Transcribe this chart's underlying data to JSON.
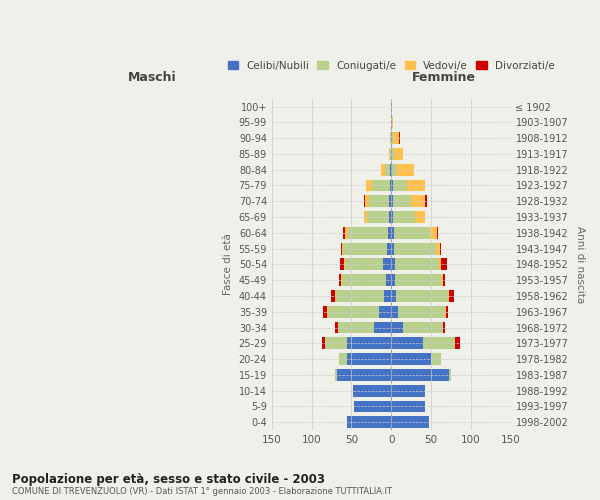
{
  "age_groups": [
    "0-4",
    "5-9",
    "10-14",
    "15-19",
    "20-24",
    "25-29",
    "30-34",
    "35-39",
    "40-44",
    "45-49",
    "50-54",
    "55-59",
    "60-64",
    "65-69",
    "70-74",
    "75-79",
    "80-84",
    "85-89",
    "90-94",
    "95-99",
    "100+"
  ],
  "birth_years": [
    "1998-2002",
    "1993-1997",
    "1988-1992",
    "1983-1987",
    "1978-1982",
    "1973-1977",
    "1968-1972",
    "1963-1967",
    "1958-1962",
    "1953-1957",
    "1948-1952",
    "1943-1947",
    "1938-1942",
    "1933-1937",
    "1928-1932",
    "1923-1927",
    "1918-1922",
    "1913-1917",
    "1908-1912",
    "1903-1907",
    "≤ 1902"
  ],
  "maschi": {
    "celibi": [
      56,
      47,
      48,
      68,
      55,
      55,
      22,
      15,
      9,
      7,
      10,
      5,
      4,
      3,
      3,
      2,
      1,
      0,
      0,
      0,
      0
    ],
    "coniugati": [
      0,
      0,
      0,
      3,
      10,
      28,
      45,
      65,
      60,
      55,
      48,
      55,
      50,
      28,
      25,
      22,
      7,
      2,
      1,
      0,
      0
    ],
    "vedovi": [
      0,
      0,
      0,
      0,
      0,
      0,
      0,
      1,
      1,
      1,
      1,
      2,
      4,
      3,
      5,
      8,
      5,
      1,
      0,
      0,
      0
    ],
    "divorziati": [
      0,
      0,
      0,
      0,
      1,
      4,
      3,
      5,
      6,
      3,
      5,
      1,
      2,
      0,
      1,
      0,
      0,
      0,
      0,
      0,
      0
    ]
  },
  "femmine": {
    "nubili": [
      48,
      42,
      42,
      72,
      50,
      40,
      15,
      8,
      6,
      5,
      5,
      4,
      3,
      2,
      2,
      2,
      1,
      0,
      0,
      0,
      0
    ],
    "coniugate": [
      0,
      0,
      0,
      3,
      12,
      40,
      50,
      60,
      65,
      58,
      55,
      52,
      46,
      28,
      23,
      18,
      6,
      3,
      2,
      1,
      0
    ],
    "vedove": [
      0,
      0,
      0,
      0,
      0,
      0,
      0,
      1,
      2,
      2,
      3,
      5,
      8,
      12,
      18,
      22,
      22,
      12,
      8,
      1,
      1
    ],
    "divorziate": [
      0,
      0,
      0,
      0,
      1,
      6,
      2,
      2,
      6,
      2,
      7,
      2,
      2,
      1,
      2,
      1,
      0,
      0,
      1,
      0,
      0
    ]
  },
  "colors": {
    "celibi_nubili": "#4472c4",
    "coniugati": "#b8d08c",
    "vedovi": "#ffc04c",
    "divorziati": "#cc0000"
  },
  "xlim": 150,
  "title": "Popolazione per età, sesso e stato civile - 2003",
  "subtitle": "COMUNE DI TREVENZUOLO (VR) - Dati ISTAT 1° gennaio 2003 - Elaborazione TUTTITALIA.IT",
  "ylabel_left": "Fasce di età",
  "ylabel_right": "Anni di nascita",
  "xlabel_maschi": "Maschi",
  "xlabel_femmine": "Femmine",
  "legend_labels": [
    "Celibi/Nubili",
    "Coniugati/e",
    "Vedovi/e",
    "Divorziati/e"
  ],
  "background_color": "#f0f0eb",
  "grid_color": "#cccccc",
  "xticks": [
    -150,
    -100,
    -50,
    0,
    50,
    100,
    150
  ]
}
